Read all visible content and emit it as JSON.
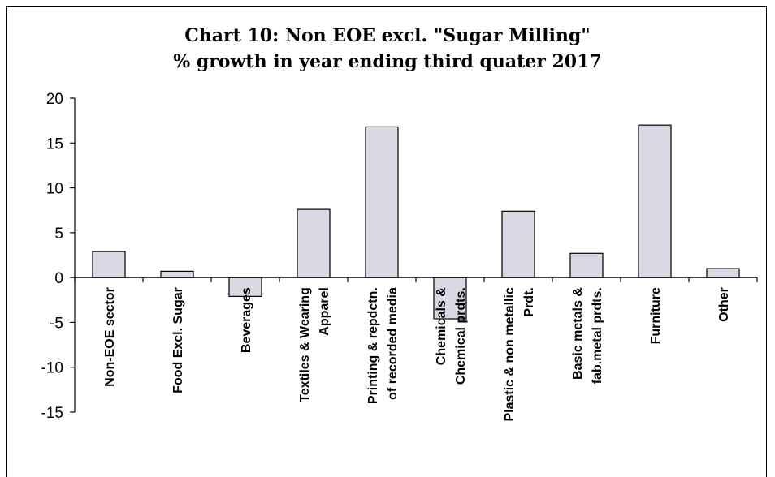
{
  "chart_data": {
    "type": "bar",
    "title": [
      "Chart 10: Non EOE excl. \"Sugar Milling\"",
      "% growth in year ending third quater 2017"
    ],
    "categories": [
      [
        "Non-EOE sector"
      ],
      [
        "Food Excl. Sugar"
      ],
      [
        "Beverages"
      ],
      [
        "Textiles & Wearing",
        "Apparel"
      ],
      [
        "Printing & repdctn.",
        "of recorded media"
      ],
      [
        "Chemicals &",
        "Chemical prdts."
      ],
      [
        "Plastic & non metallic",
        "Prdt."
      ],
      [
        "Basic metals &",
        "fab.metal prdts."
      ],
      [
        "Furniture"
      ],
      [
        "Other"
      ]
    ],
    "values": [
      2.9,
      0.7,
      -2.1,
      7.6,
      16.8,
      -4.6,
      7.4,
      2.7,
      17.0,
      1.0
    ],
    "ylim": [
      -15,
      20
    ],
    "yticks": [
      20,
      15,
      10,
      5,
      0,
      -5,
      -10,
      -15
    ],
    "bar_color": "#d9d9e3",
    "grid": false
  }
}
